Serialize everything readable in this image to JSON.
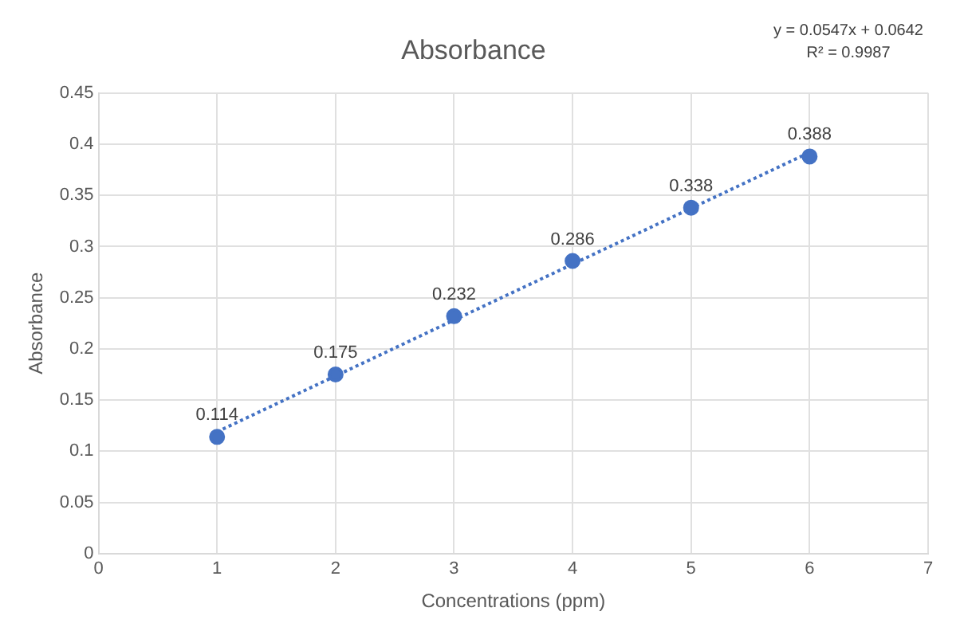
{
  "chart_data": {
    "type": "scatter",
    "title": "Absorbance",
    "xlabel": "Concentrations (ppm)",
    "ylabel": "Absorbance",
    "series": [
      {
        "x": [
          1,
          2,
          3,
          4,
          5,
          6
        ],
        "values": [
          0.114,
          0.175,
          0.232,
          0.286,
          0.338,
          0.388
        ],
        "value_labels": [
          "0.114",
          "0.175",
          "0.232",
          "0.286",
          "0.338",
          "0.388"
        ],
        "color": "#4472c4",
        "marker": "circle"
      },
      {
        "type": "line",
        "x": [
          1,
          6
        ],
        "values": [
          0.119,
          0.392
        ],
        "color": "#4472c4",
        "line_style": "dotted",
        "marker": "none"
      }
    ],
    "xlim": [
      0,
      7
    ],
    "xticks": [
      0,
      1,
      2,
      3,
      4,
      5,
      6,
      7
    ],
    "ylim": [
      0,
      0.45
    ],
    "yticks": [
      0,
      0.05,
      0.1,
      0.15,
      0.2,
      0.25,
      0.3,
      0.35,
      0.4,
      0.45
    ],
    "grid": true,
    "legend": false,
    "annotations": [
      "y = 0.0547x + 0.0642",
      "R² = 0.9987"
    ]
  }
}
